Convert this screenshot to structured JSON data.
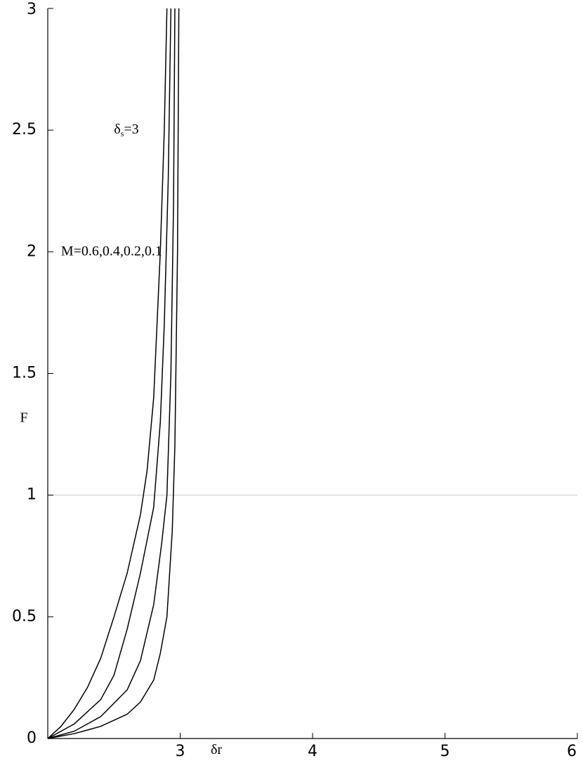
{
  "chart_data": {
    "type": "line",
    "x_label": "δr",
    "y_label": "F",
    "annotations": [
      {
        "base": "δ",
        "sub": "s",
        "rest": "=3",
        "x": 2.5,
        "y": 2.5
      },
      {
        "base": "M=0.6,0.4,0.2,0.1",
        "x": 2.1,
        "y": 2.0
      }
    ],
    "xlim": [
      2,
      6
    ],
    "ylim": [
      0,
      3
    ],
    "xticks": [
      3,
      4,
      5,
      6
    ],
    "yticks": [
      0,
      0.5,
      1,
      1.5,
      2,
      2.5,
      3
    ],
    "reference_line": 1,
    "series": [
      {
        "color": "#000000",
        "x": [
          2,
          2.1,
          2.2,
          2.3,
          2.4,
          2.5,
          2.6,
          2.7,
          2.75,
          2.8,
          2.85,
          2.88,
          2.9
        ],
        "values": [
          0,
          0.05,
          0.12,
          0.21,
          0.33,
          0.5,
          0.68,
          0.92,
          1.1,
          1.4,
          2.0,
          2.5,
          3.0
        ]
      },
      {
        "color": "#000000",
        "x": [
          2,
          2.2,
          2.4,
          2.5,
          2.6,
          2.7,
          2.8,
          2.85,
          2.88,
          2.91,
          2.93
        ],
        "values": [
          0,
          0.06,
          0.16,
          0.26,
          0.45,
          0.68,
          0.95,
          1.3,
          1.7,
          2.3,
          3.0
        ]
      },
      {
        "color": "#000000",
        "x": [
          2,
          2.2,
          2.4,
          2.6,
          2.7,
          2.8,
          2.86,
          2.9,
          2.93,
          2.95,
          2.96
        ],
        "values": [
          0,
          0.03,
          0.09,
          0.2,
          0.32,
          0.55,
          0.8,
          1.0,
          1.5,
          2.2,
          3.0
        ]
      },
      {
        "color": "#000000",
        "x": [
          2,
          2.2,
          2.4,
          2.6,
          2.7,
          2.8,
          2.85,
          2.9,
          2.94,
          2.96,
          2.98,
          2.99
        ],
        "values": [
          0,
          0.02,
          0.05,
          0.1,
          0.15,
          0.24,
          0.35,
          0.5,
          0.85,
          1.2,
          2.0,
          3.0
        ]
      }
    ]
  }
}
